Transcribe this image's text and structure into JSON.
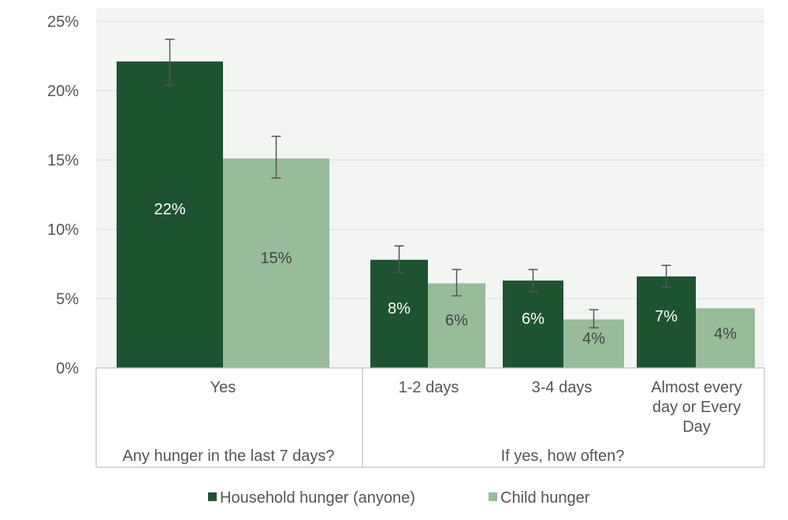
{
  "chart_data": {
    "type": "bar",
    "title": "",
    "xlabel": "",
    "ylabel": "",
    "ylim": [
      0,
      25
    ],
    "yticks": [
      0,
      5,
      10,
      15,
      20,
      25
    ],
    "ytick_labels": [
      "0%",
      "5%",
      "10%",
      "15%",
      "20%",
      "25%"
    ],
    "grid": true,
    "legend_position": "bottom",
    "groups": [
      {
        "label": "Any hunger in the last 7 days?",
        "categories": [
          0
        ]
      },
      {
        "label": "If yes, how often?",
        "categories": [
          1,
          2,
          3
        ]
      }
    ],
    "categories": [
      "Yes",
      "1-2 days",
      "3-4 days",
      "Almost every day or Every Day"
    ],
    "series": [
      {
        "name": "Household hunger (anyone)",
        "color": "#1e5331",
        "values": [
          22.1,
          7.8,
          6.3,
          6.6
        ],
        "labels": [
          "22%",
          "8%",
          "6%",
          "7%"
        ],
        "error_low": [
          20.4,
          6.9,
          5.5,
          5.8
        ],
        "error_high": [
          23.7,
          8.8,
          7.1,
          7.4
        ]
      },
      {
        "name": "Child hunger",
        "color": "#98bb9a",
        "values": [
          15.1,
          6.1,
          3.5,
          4.3
        ],
        "labels": [
          "15%",
          "6%",
          "4%",
          "4%"
        ],
        "error_low": [
          13.7,
          5.2,
          2.9,
          null
        ],
        "error_high": [
          16.7,
          7.1,
          4.2,
          null
        ]
      }
    ]
  }
}
